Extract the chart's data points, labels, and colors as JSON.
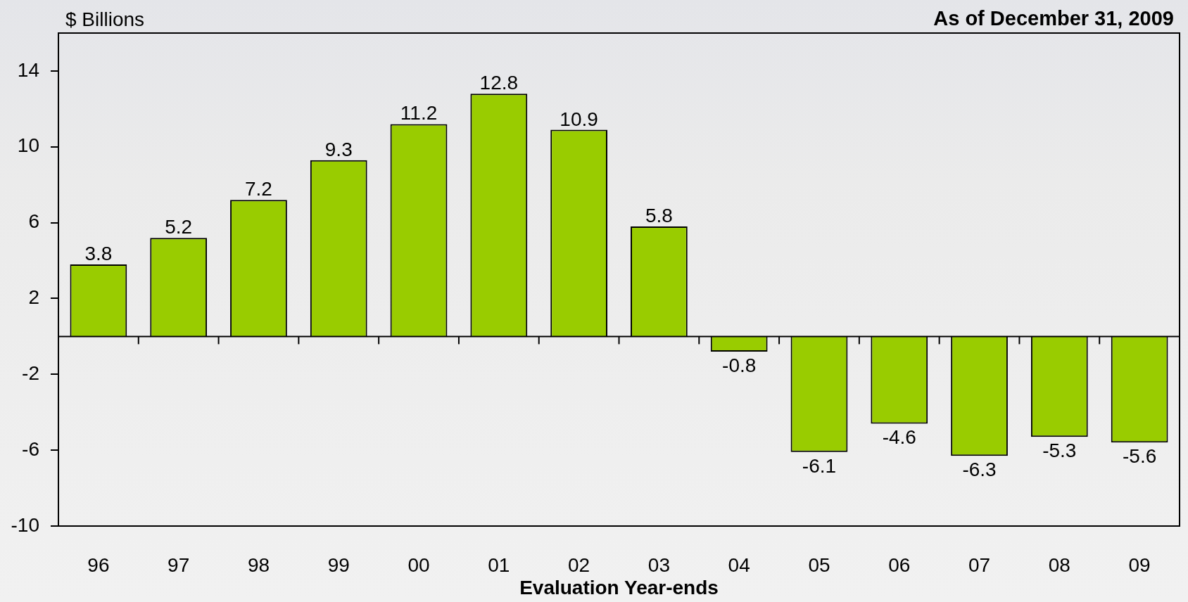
{
  "chart_data": {
    "type": "bar",
    "subtitle": "As of December 31, 2009",
    "ylabel": "$ Billions",
    "xlabel": "Evaluation Year-ends",
    "categories": [
      "96",
      "97",
      "98",
      "99",
      "00",
      "01",
      "02",
      "03",
      "04",
      "05",
      "06",
      "07",
      "08",
      "09"
    ],
    "values": [
      3.8,
      5.2,
      7.2,
      9.3,
      11.2,
      12.8,
      10.9,
      5.8,
      -0.8,
      -6.1,
      -4.6,
      -6.3,
      -5.3,
      -5.6
    ],
    "color": "#99cc00",
    "ylim": [
      -10,
      16
    ],
    "yticks": [
      -10,
      -6,
      -2,
      2,
      6,
      10,
      14
    ],
    "data_labels": true
  }
}
